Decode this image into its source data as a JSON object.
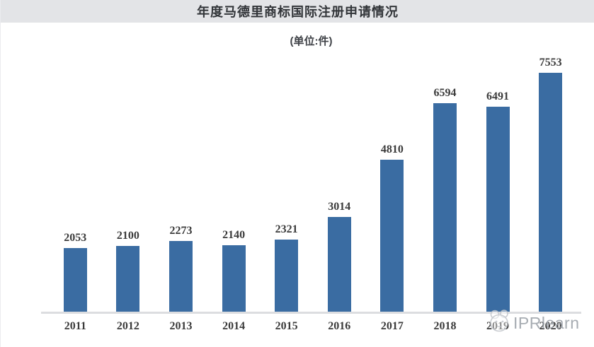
{
  "header": {
    "title": "年度马德里商标国际注册申请情况",
    "subtitle": "(单位:件)"
  },
  "chart_data": {
    "type": "bar",
    "title": "年度马德里商标国际注册申请情况",
    "subtitle": "(单位:件)",
    "categories": [
      "2011",
      "2012",
      "2013",
      "2014",
      "2015",
      "2016",
      "2017",
      "2018",
      "2019",
      "2020"
    ],
    "values": [
      2053,
      2100,
      2273,
      2140,
      2321,
      3014,
      4810,
      6594,
      6491,
      7553
    ],
    "xlabel": "",
    "ylabel": "",
    "ylim": [
      0,
      7553
    ],
    "grid": false,
    "legend": false,
    "value_labels": true,
    "bar_color": "#3a6ca2"
  },
  "watermark": {
    "brand": "IPRlearn",
    "logo_icon": "cartoon-face-icon"
  },
  "colors": {
    "header_bg": "#e3e4e7",
    "bar_blue": "#3a6ca2",
    "axis_line": "#dcdde0",
    "label_text": "#3b3b3b",
    "watermark_gray": "#9ba1a8"
  }
}
